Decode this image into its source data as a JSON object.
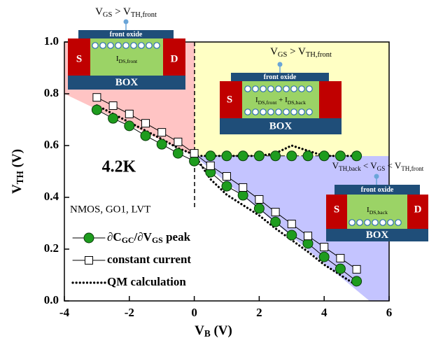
{
  "chart_data": {
    "type": "line",
    "xlabel": [
      "V",
      "B",
      " (V)"
    ],
    "ylabel": [
      "V",
      "TH",
      " (V)"
    ],
    "xlim": [
      -4,
      6
    ],
    "xticks": [
      -4,
      -2,
      0,
      2,
      4,
      6
    ],
    "ylim": [
      0,
      1
    ],
    "yticks": [
      {
        "value": 0,
        "label": "0.0"
      },
      0.2,
      0.4,
      0.6,
      0.8,
      {
        "value": 1,
        "label": "1.0"
      }
    ],
    "series": [
      {
        "name": [
          "∂C",
          "GC",
          "/∂V",
          "GS",
          " peak"
        ],
        "color": "#1e9c1e",
        "marker": "circle",
        "line": "solid",
        "x": [
          -3,
          -2.5,
          -2,
          -1.5,
          -1,
          -0.5,
          0,
          0.5,
          1,
          1.5,
          2,
          2.5,
          3,
          3.5,
          4,
          4.5,
          5
        ],
        "values": [
          0.738,
          0.705,
          0.676,
          0.638,
          0.605,
          0.57,
          0.54,
          0.497,
          0.443,
          0.408,
          0.357,
          0.305,
          0.254,
          0.222,
          0.17,
          0.124,
          0.076
        ]
      },
      {
        "color": "#1e9c1e",
        "marker": "circle",
        "line": "dashed",
        "x": [
          0.5,
          1,
          1.5,
          2,
          2.5,
          3,
          3.5,
          4,
          4.5,
          5
        ],
        "values": [
          0.56,
          0.56,
          0.56,
          0.56,
          0.56,
          0.56,
          0.56,
          0.56,
          0.56,
          0.56
        ]
      },
      {
        "name": [
          "constant current"
        ],
        "color": "#ffffff",
        "marker": "square",
        "line": "solid",
        "x": [
          -3,
          -2.5,
          -2,
          -1.5,
          -1,
          -0.5,
          0,
          0.5,
          1,
          1.5,
          2,
          2.5,
          3,
          3.5,
          4,
          4.5,
          5
        ],
        "values": [
          0.786,
          0.754,
          0.722,
          0.686,
          0.651,
          0.614,
          0.57,
          0.522,
          0.481,
          0.438,
          0.392,
          0.343,
          0.297,
          0.251,
          0.208,
          0.165,
          0.122
        ]
      },
      {
        "name": [
          "QM calculation"
        ],
        "color": "#000000",
        "marker": "none",
        "line": "dotted",
        "x": [
          -3,
          -2,
          -1,
          -0.5,
          0,
          0.5,
          1,
          1.5,
          2,
          2.5,
          3,
          3.5,
          4,
          4.5,
          5
        ],
        "values": [
          0.755,
          0.69,
          0.625,
          0.59,
          0.565,
          0.47,
          0.41,
          0.37,
          0.33,
          0.28,
          0.235,
          0.19,
          0.14,
          0.1,
          0.06
        ]
      },
      {
        "color": "#000000",
        "marker": "none",
        "line": "dotted",
        "x": [
          0,
          0.5,
          1,
          1.5,
          2,
          2.5,
          3,
          3.5,
          4,
          4.5,
          5
        ],
        "values": [
          0.56,
          0.56,
          0.56,
          0.56,
          0.56,
          0.57,
          0.6,
          0.58,
          0.56,
          0.56,
          0.56
        ]
      }
    ],
    "annotations": {
      "temperature": "4.2K",
      "device": "NMOS, GO1, LVT"
    },
    "insets": [
      {
        "condition": [
          "V",
          "GS",
          " > V",
          "TH,front"
        ],
        "oxide": "front oxide",
        "source": "S",
        "drain": "D",
        "current": [
          "I",
          "DS,front"
        ],
        "box": "BOX"
      },
      {
        "condition": [
          "V",
          "GS",
          " > V",
          "TH,front"
        ],
        "oxide": "front oxide",
        "source": "S",
        "current": [
          "I",
          "DS,front",
          " + I",
          "DS,back"
        ],
        "box": "BOX"
      },
      {
        "condition": [
          "V",
          "TH,back",
          " < V",
          "GS",
          " < V",
          "TH,front"
        ],
        "oxide": "front oxide",
        "source": "S",
        "drain": "D",
        "current": [
          "I",
          "DS,back"
        ],
        "box": "BOX"
      }
    ]
  }
}
